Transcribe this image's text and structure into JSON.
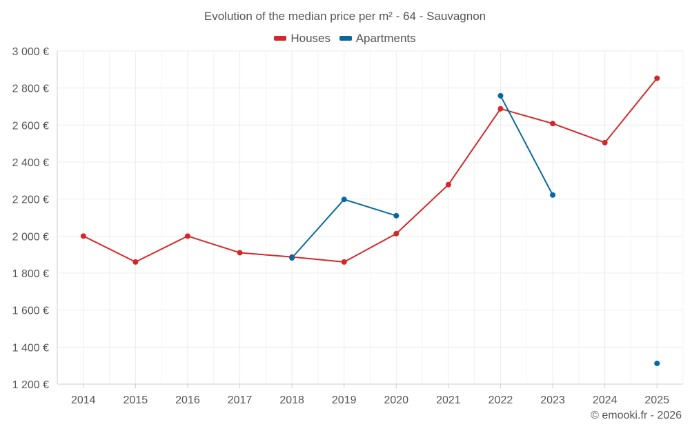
{
  "chart_data": {
    "type": "line",
    "title": "Evolution of the median price per m² - 64 - Sauvagnon",
    "categories": [
      "2014",
      "2015",
      "2016",
      "2017",
      "2018",
      "2019",
      "2020",
      "2021",
      "2022",
      "2023",
      "2024",
      "2025"
    ],
    "ylim": [
      1200,
      3000
    ],
    "yticks": [
      1200,
      1400,
      1600,
      1800,
      2000,
      2200,
      2400,
      2600,
      2800,
      3000
    ],
    "ytick_labels": [
      "1 200 €",
      "1 400 €",
      "1 600 €",
      "1 800 €",
      "2 000 €",
      "2 200 €",
      "2 400 €",
      "2 600 €",
      "2 800 €",
      "3 000 €"
    ],
    "grid": true,
    "legend_position": "top-center",
    "series": [
      {
        "name": "Houses",
        "color": "#d62728",
        "values": [
          2000,
          1860,
          2000,
          1910,
          1887,
          1860,
          2013,
          2278,
          2688,
          2608,
          2505,
          2853
        ]
      },
      {
        "name": "Apartments",
        "color": "#07689f",
        "values": [
          null,
          null,
          null,
          null,
          1882,
          2198,
          2110,
          null,
          2758,
          2222,
          null,
          1312
        ]
      }
    ]
  },
  "footer": {
    "credit": "© emooki.fr - 2026"
  }
}
